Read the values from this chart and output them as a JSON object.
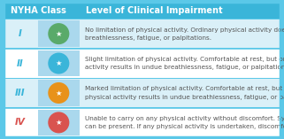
{
  "title_left": "NYHA Class",
  "title_right": "Level of Clinical Impairment",
  "header_bg": "#3ab5d9",
  "header_text_color": "#ffffff",
  "border_color": "#5bc8e8",
  "outer_bg": "#5bc8e8",
  "rows": [
    {
      "class": "I",
      "class_color": "#3ab5d9",
      "class_style": "normal",
      "icon_bg": "#5aaa6a",
      "row_bg": "#daf0f8",
      "text1": "No limitation of physical activity. Ordinary physical activity does not cause undue",
      "text2": "breathlessness, fatigue, or palpitations."
    },
    {
      "class": "II",
      "class_color": "#3ab5d9",
      "class_style": "normal",
      "icon_bg": "#3ab5d9",
      "row_bg": "#ffffff",
      "text1": "Slight limitation of physical activity. Comfortable at rest, but ordinary physical",
      "text2": "activity results in undue breathlessness, fatigue, or palpitations."
    },
    {
      "class": "III",
      "class_color": "#3ab5d9",
      "class_style": "normal",
      "icon_bg": "#e8921a",
      "row_bg": "#daf0f8",
      "text1": "Marked limitation of physical activity. Comfortable at rest, but less than ordinary",
      "text2": "physical activity results in undue breathlessness, fatigue, or palpitations."
    },
    {
      "class": "IV",
      "class_color": "#d9534f",
      "class_style": "normal",
      "icon_bg": "#d9534f",
      "row_bg": "#ffffff",
      "text1": "Unable to carry on any physical activity without discomfort. Symptoms at rest",
      "text2": "can be present. If any physical activity is undertaken, discomfort is increased."
    }
  ],
  "text_color": "#555555",
  "text_fontsize": 5.2,
  "class_fontsize": 7.5,
  "header_fontsize": 7.0
}
